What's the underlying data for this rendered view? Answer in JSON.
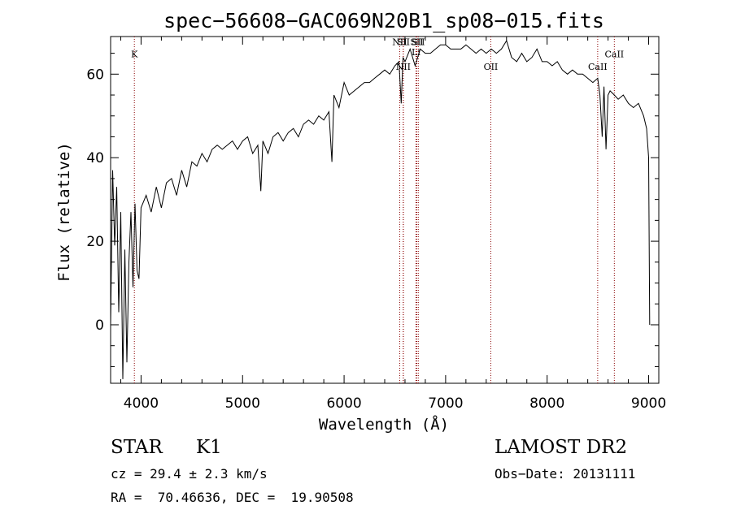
{
  "chart_data": {
    "type": "line",
    "title": "spec−56608−GAC069N20B1_sp08−015.fits",
    "xlabel": "Wavelength (Å)",
    "ylabel": "Flux (relative)",
    "xlim": [
      3700,
      9100
    ],
    "ylim": [
      -14,
      69
    ],
    "x_ticks": [
      "4000",
      "5000",
      "6000",
      "7000",
      "8000",
      "9000"
    ],
    "y_ticks": [
      "0",
      "20",
      "40",
      "60"
    ],
    "grid": false,
    "line_color": "#000000",
    "marker_color": "#8b0000",
    "series": [
      {
        "x": [
          3700,
          3720,
          3740,
          3760,
          3780,
          3800,
          3820,
          3840,
          3860,
          3880,
          3900,
          3920,
          3940,
          3960,
          3980,
          4000,
          4050,
          4100,
          4150,
          4200,
          4250,
          4300,
          4350,
          4400,
          4450,
          4500,
          4550,
          4600,
          4650,
          4700,
          4750,
          4800,
          4850,
          4900,
          4950,
          5000,
          5050,
          5100,
          5150,
          5180,
          5200,
          5250,
          5300,
          5350,
          5400,
          5450,
          5500,
          5550,
          5600,
          5650,
          5700,
          5750,
          5800,
          5850,
          5880,
          5900,
          5950,
          6000,
          6050,
          6100,
          6150,
          6200,
          6250,
          6300,
          6350,
          6400,
          6450,
          6500,
          6540,
          6563,
          6580,
          6600,
          6650,
          6700,
          6750,
          6800,
          6850,
          6900,
          6950,
          7000,
          7050,
          7100,
          7150,
          7200,
          7250,
          7300,
          7350,
          7400,
          7450,
          7500,
          7550,
          7600,
          7650,
          7700,
          7750,
          7800,
          7850,
          7900,
          7950,
          8000,
          8050,
          8100,
          8150,
          8200,
          8250,
          8300,
          8350,
          8400,
          8450,
          8498,
          8520,
          8542,
          8560,
          8580,
          8600,
          8620,
          8662,
          8700,
          8750,
          8800,
          8850,
          8900,
          8950,
          8980,
          9000,
          9010
        ],
        "y": [
          0,
          37,
          19,
          33,
          3,
          27,
          -13,
          18,
          -9,
          15,
          27,
          9,
          29,
          13,
          11,
          28,
          31,
          27,
          33,
          28,
          34,
          35,
          31,
          37,
          33,
          39,
          38,
          41,
          39,
          42,
          43,
          42,
          43,
          44,
          42,
          44,
          45,
          41,
          43,
          32,
          44,
          41,
          45,
          46,
          44,
          46,
          47,
          45,
          48,
          49,
          48,
          50,
          49,
          51,
          39,
          55,
          52,
          58,
          55,
          56,
          57,
          58,
          58,
          59,
          60,
          61,
          60,
          62,
          63,
          53,
          64,
          63,
          66,
          62,
          66,
          65,
          65,
          66,
          67,
          67,
          66,
          66,
          66,
          67,
          66,
          65,
          66,
          65,
          66,
          65,
          66,
          68,
          64,
          63,
          65,
          63,
          64,
          66,
          63,
          63,
          62,
          63,
          61,
          60,
          61,
          60,
          60,
          59,
          58,
          59,
          55,
          45,
          57,
          42,
          55,
          56,
          55,
          54,
          55,
          53,
          52,
          53,
          50,
          47,
          40,
          0
        ]
      }
    ],
    "line_markers": [
      {
        "label": "K",
        "x": 3934,
        "y_label": 64
      },
      {
        "label": "NII",
        "x": 6548,
        "y_label": 67
      },
      {
        "label": "SII",
        "x": 6583,
        "y_label": 67
      },
      {
        "label": "NII",
        "x": 6583,
        "y_label": 61
      },
      {
        "label": "Li",
        "x": 6708,
        "y_label": 64.5
      },
      {
        "label": "SII",
        "x": 6716,
        "y_label": 67
      },
      {
        "label": "SII",
        "x": 6731,
        "y_label": 67
      },
      {
        "label": "OII",
        "x": 7445,
        "y_label": 61
      },
      {
        "label": "CaII",
        "x": 8498,
        "y_label": 61
      },
      {
        "label": "CaII",
        "x": 8662,
        "y_label": 64
      }
    ]
  },
  "info": {
    "class": "STAR",
    "subclass": "K1",
    "cz": "cz = 29.4 ± 2.3 km/s",
    "coords": "RA =  70.46636, DEC =  19.90508",
    "survey": "LAMOST DR2",
    "obs_date": "Obs−Date: 20131111"
  }
}
